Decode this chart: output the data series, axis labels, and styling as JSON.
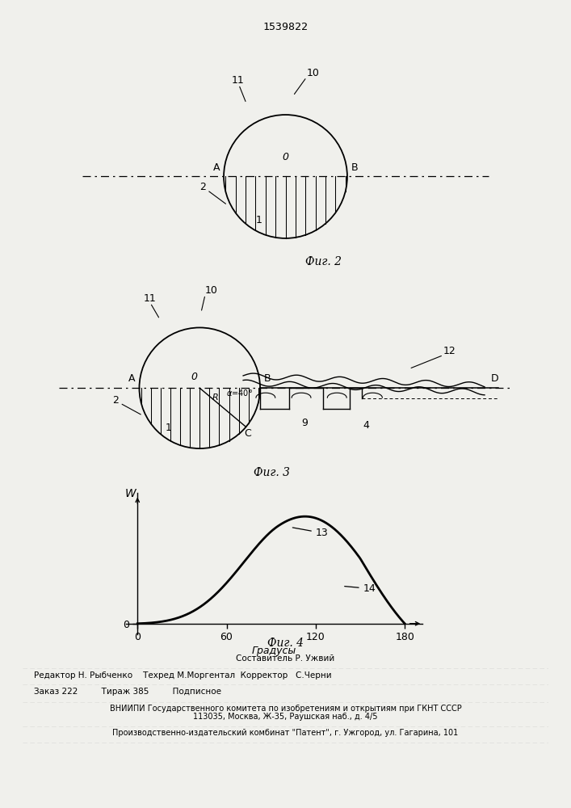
{
  "title": "1539822",
  "fig2_label": "Фиг. 2",
  "fig3_label": "Фиг. 3",
  "fig4_label": "Фиг. 4",
  "background_color": "#f0f0ec",
  "line_color": "#000000",
  "footer_lines": [
    "Составитель Р. Ужвий",
    "Редактор Н. Рыбченко    Техред М.Моргентал  Корректор   С.Черни",
    "Заказ 222         Тираж 385         Подписное",
    "ВНИИПИ Государственного комитета по изобретениям и открытиям при ГКНТ СССР",
    "113035, Москва, Ж-35, Раушская наб., д. 4/5",
    "Производственно-издательский комбинат \"Патент\", г. Ужгород, ул. Гагарина, 101"
  ]
}
